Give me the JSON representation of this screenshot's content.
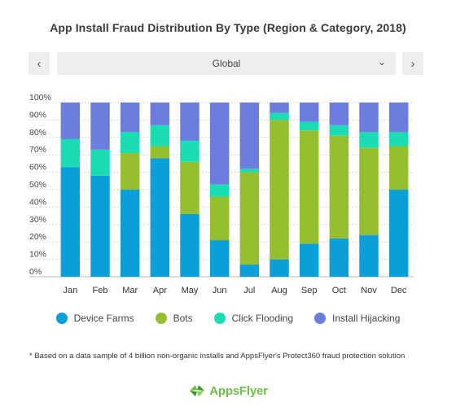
{
  "header": {
    "title": "App Install Fraud Distribution By Type (Region & Category, 2018)"
  },
  "selector": {
    "prev_icon": "chevron-left-icon",
    "next_icon": "chevron-right-icon",
    "value": "Global",
    "prev_glyph": "‹",
    "next_glyph": "›",
    "caret_glyph": "⌄"
  },
  "footnote": "* Based on a data sample of 4 billion non-organic installs and AppsFlyer's Protect360 fraud protection solution",
  "brand": {
    "name": "AppsFlyer",
    "logo_icon": "appsflyer-logo-icon"
  },
  "colors": {
    "device_farms": "#0a9fd8",
    "bots": "#96bf2f",
    "click_flooding": "#1bddb3",
    "install_hijacking": "#6c7de0"
  },
  "chart_data": {
    "type": "bar",
    "stacked": true,
    "categories": [
      "Jan",
      "Feb",
      "Mar",
      "Apr",
      "May",
      "Jun",
      "Jul",
      "Aug",
      "Sep",
      "Oct",
      "Nov",
      "Dec"
    ],
    "series": [
      {
        "name": "Device Farms",
        "values": [
          63,
          58,
          50,
          68,
          36,
          21,
          7,
          10,
          19,
          22,
          24,
          50
        ]
      },
      {
        "name": "Bots",
        "values": [
          0,
          0,
          21,
          7,
          30,
          25,
          53,
          80,
          65,
          59,
          50,
          25
        ]
      },
      {
        "name": "Click Flooding",
        "values": [
          16,
          15,
          12,
          12,
          12,
          7,
          2,
          4,
          5,
          6,
          9,
          8
        ]
      },
      {
        "name": "Install Hijacking",
        "values": [
          21,
          27,
          17,
          13,
          22,
          47,
          38,
          6,
          11,
          13,
          17,
          17
        ]
      }
    ],
    "yticks": [
      "0%",
      "10%",
      "20%",
      "30%",
      "40%",
      "50%",
      "60%",
      "70%",
      "80%",
      "90%",
      "100%"
    ],
    "ylim": [
      0,
      100
    ],
    "legend_position": "bottom",
    "grid": true
  }
}
